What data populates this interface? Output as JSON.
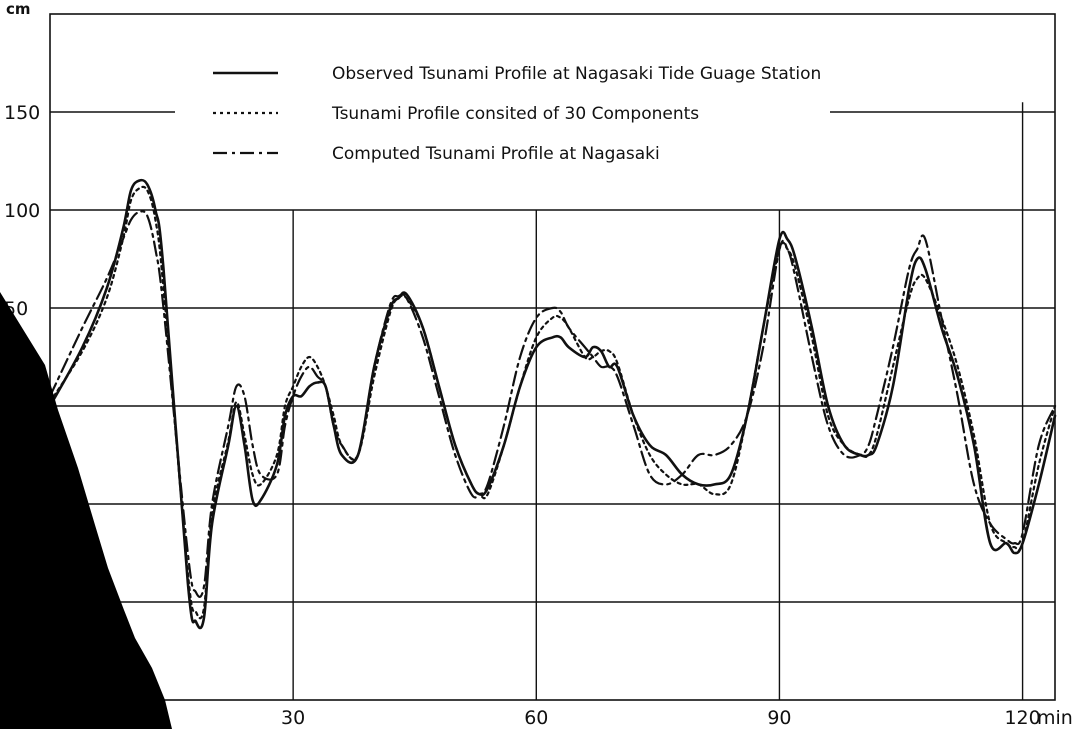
{
  "chart_data": {
    "type": "line",
    "y_unit": "cm",
    "x_unit": "min",
    "xlim": [
      0,
      124
    ],
    "ylim": [
      -150,
      200
    ],
    "x_ticks": [
      {
        "value": 30,
        "label": "30"
      },
      {
        "value": 60,
        "label": "60"
      },
      {
        "value": 90,
        "label": "90"
      },
      {
        "value": 120,
        "label": "120"
      }
    ],
    "y_ticks": [
      {
        "value": 150,
        "label": "150"
      },
      {
        "value": 100,
        "label": "100"
      },
      {
        "value": 50,
        "label": "50"
      },
      {
        "value": 0,
        "label": ""
      },
      {
        "value": -50,
        "label": ""
      },
      {
        "value": -100,
        "label": ""
      }
    ],
    "grid_x": [
      30,
      60,
      90,
      120
    ],
    "grid_y": [
      150,
      100,
      50,
      0,
      -50,
      -100
    ],
    "legend_position": "top-center",
    "series": [
      {
        "name": "Observed Tsunami Profile at Nagasaki Tide Guage Station",
        "style": "solid",
        "x": [
          0,
          4,
          7,
          9,
          10,
          11,
          12,
          13,
          14,
          17,
          18,
          19,
          20,
          22,
          23,
          24,
          25,
          26,
          28,
          29,
          30,
          31,
          32,
          33,
          34,
          35,
          36,
          38,
          40,
          42,
          43,
          44,
          46,
          48,
          50,
          52,
          53,
          54,
          56,
          58,
          60,
          62,
          63,
          64,
          66,
          67,
          68,
          69,
          70,
          72,
          74,
          76,
          78,
          80,
          82,
          84,
          86,
          88,
          90,
          91,
          92,
          94,
          96,
          98,
          100,
          101,
          102,
          104,
          106,
          107,
          108,
          110,
          112,
          114,
          116,
          118,
          119,
          120,
          122,
          124
        ],
        "y": [
          0,
          30,
          60,
          90,
          110,
          115,
          113,
          100,
          70,
          -90,
          -110,
          -108,
          -60,
          -20,
          0,
          -20,
          -48,
          -48,
          -30,
          -5,
          5,
          5,
          10,
          12,
          10,
          -10,
          -25,
          -25,
          20,
          50,
          55,
          57,
          40,
          10,
          -20,
          -40,
          -45,
          -42,
          -20,
          10,
          30,
          35,
          35,
          30,
          25,
          30,
          28,
          20,
          20,
          -5,
          -20,
          -25,
          -35,
          -40,
          -40,
          -35,
          -5,
          40,
          85,
          85,
          75,
          40,
          0,
          -20,
          -25,
          -25,
          -20,
          10,
          60,
          75,
          70,
          40,
          15,
          -20,
          -70,
          -70,
          -75,
          -70,
          -40,
          -5
        ]
      },
      {
        "name": "Tsunami Profile consited of 30 Components",
        "style": "dotted",
        "x": [
          0,
          4,
          7,
          9,
          10,
          11,
          12,
          13,
          14,
          17,
          18,
          19,
          20,
          22,
          23,
          24,
          25,
          26,
          28,
          29,
          30,
          31,
          32,
          33,
          34,
          35,
          36,
          38,
          40,
          42,
          43,
          44,
          46,
          48,
          50,
          52,
          53,
          54,
          56,
          58,
          60,
          62,
          63,
          64,
          66,
          67,
          68,
          69,
          70,
          72,
          74,
          76,
          78,
          80,
          82,
          84,
          86,
          88,
          90,
          91,
          92,
          94,
          96,
          98,
          100,
          101,
          102,
          104,
          106,
          107,
          108,
          110,
          112,
          114,
          116,
          118,
          119,
          120,
          122,
          124
        ],
        "y": [
          2,
          28,
          55,
          85,
          105,
          111,
          110,
          95,
          60,
          -85,
          -105,
          -103,
          -55,
          -18,
          2,
          -15,
          -35,
          -40,
          -25,
          0,
          10,
          20,
          25,
          20,
          10,
          -5,
          -20,
          -25,
          15,
          48,
          55,
          55,
          40,
          10,
          -20,
          -40,
          -45,
          -45,
          -20,
          10,
          35,
          45,
          45,
          40,
          25,
          25,
          28,
          28,
          22,
          -5,
          -25,
          -35,
          -40,
          -40,
          -45,
          -40,
          -5,
          40,
          80,
          80,
          70,
          35,
          -5,
          -20,
          -25,
          -25,
          -15,
          20,
          55,
          65,
          65,
          45,
          20,
          -15,
          -60,
          -70,
          -72,
          -70,
          -30,
          0
        ]
      },
      {
        "name": "Computed Tsunami Profile at Nagasaki",
        "style": "dashdot",
        "x": [
          0,
          4,
          7,
          9,
          10,
          11,
          12,
          13,
          14,
          17,
          18,
          19,
          20,
          22,
          23,
          24,
          25,
          26,
          28,
          29,
          30,
          31,
          32,
          33,
          34,
          35,
          36,
          38,
          40,
          42,
          43,
          44,
          46,
          48,
          50,
          52,
          53,
          54,
          56,
          58,
          60,
          62,
          63,
          64,
          66,
          67,
          68,
          69,
          70,
          72,
          74,
          76,
          78,
          80,
          82,
          84,
          86,
          88,
          90,
          91,
          92,
          94,
          96,
          98,
          100,
          101,
          102,
          104,
          106,
          107,
          108,
          110,
          112,
          114,
          116,
          118,
          119,
          120,
          122,
          124
        ],
        "y": [
          5,
          40,
          65,
          85,
          95,
          99,
          97,
          80,
          50,
          -75,
          -95,
          -92,
          -50,
          -10,
          10,
          5,
          -20,
          -35,
          -35,
          -10,
          5,
          15,
          20,
          15,
          10,
          -10,
          -20,
          -25,
          20,
          52,
          56,
          55,
          35,
          5,
          -25,
          -45,
          -45,
          -40,
          -10,
          25,
          45,
          50,
          48,
          40,
          30,
          25,
          20,
          20,
          15,
          -10,
          -35,
          -40,
          -35,
          -25,
          -25,
          -20,
          -5,
          30,
          80,
          80,
          65,
          25,
          -10,
          -25,
          -25,
          -20,
          -5,
          30,
          70,
          80,
          85,
          45,
          5,
          -40,
          -60,
          -68,
          -70,
          -65,
          -20,
          0
        ]
      }
    ]
  }
}
